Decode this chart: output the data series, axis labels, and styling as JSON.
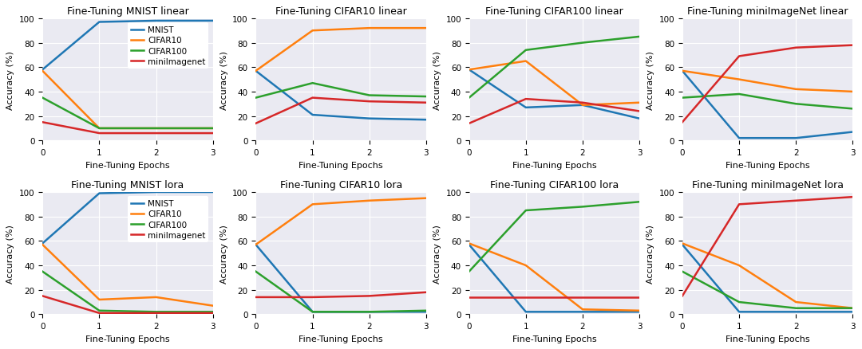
{
  "titles": [
    "Fine-Tuning MNIST linear",
    "Fine-Tuning CIFAR10 linear",
    "Fine-Tuning CIFAR100 linear",
    "Fine-Tuning miniImageNet linear",
    "Fine-Tuning MNIST lora",
    "Fine-Tuning CIFAR10 lora",
    "Fine-Tuning CIFAR100 lora",
    "Fine-Tuning miniImageNet lora"
  ],
  "xlabel": "Fine-Tuning Epochs",
  "ylabel": "Accuracy (%)",
  "legend_labels": [
    "MNIST",
    "CIFAR10",
    "CIFAR100",
    "miniImagenet"
  ],
  "colors": [
    "#1f77b4",
    "#ff7f0e",
    "#2ca02c",
    "#d62728"
  ],
  "x": [
    0,
    1,
    2,
    3
  ],
  "series": {
    "mnist_linear": {
      "MNIST": [
        58,
        97,
        98,
        98
      ],
      "CIFAR10": [
        57,
        10,
        10,
        10
      ],
      "CIFAR100": [
        35,
        10,
        10,
        10
      ],
      "miniImagenet": [
        15,
        6,
        6,
        6
      ]
    },
    "cifar10_linear": {
      "MNIST": [
        57,
        21,
        18,
        17
      ],
      "CIFAR10": [
        57,
        90,
        92,
        92
      ],
      "CIFAR100": [
        35,
        47,
        37,
        36
      ],
      "miniImagenet": [
        14,
        35,
        32,
        31
      ]
    },
    "cifar100_linear": {
      "MNIST": [
        58,
        27,
        29,
        18
      ],
      "CIFAR10": [
        58,
        65,
        29,
        31
      ],
      "CIFAR100": [
        35,
        74,
        80,
        85
      ],
      "miniImagenet": [
        14,
        34,
        31,
        24
      ]
    },
    "miniImageNet_linear": {
      "MNIST": [
        57,
        2,
        2,
        7
      ],
      "CIFAR10": [
        57,
        50,
        42,
        40
      ],
      "CIFAR100": [
        35,
        38,
        30,
        26
      ],
      "miniImagenet": [
        15,
        69,
        76,
        78
      ]
    },
    "mnist_lora": {
      "MNIST": [
        58,
        99,
        100,
        100
      ],
      "CIFAR10": [
        57,
        12,
        14,
        7
      ],
      "CIFAR100": [
        35,
        3,
        2,
        2
      ],
      "miniImagenet": [
        15,
        1,
        1,
        1
      ]
    },
    "cifar10_lora": {
      "MNIST": [
        57,
        2,
        2,
        2
      ],
      "CIFAR10": [
        57,
        90,
        93,
        95
      ],
      "CIFAR100": [
        35,
        2,
        2,
        3
      ],
      "miniImagenet": [
        14,
        14,
        15,
        18
      ]
    },
    "cifar100_lora": {
      "MNIST": [
        57,
        2,
        2,
        2
      ],
      "CIFAR10": [
        58,
        40,
        4,
        3
      ],
      "CIFAR100": [
        35,
        85,
        88,
        92
      ],
      "miniImagenet": [
        14,
        14,
        14,
        14
      ]
    },
    "miniImageNet_lora": {
      "MNIST": [
        57,
        2,
        2,
        2
      ],
      "CIFAR10": [
        58,
        40,
        10,
        5
      ],
      "CIFAR100": [
        35,
        10,
        5,
        5
      ],
      "miniImagenet": [
        15,
        90,
        93,
        96
      ]
    }
  },
  "background_color": "#eaeaf2",
  "ylim": [
    0,
    100
  ],
  "yticks": [
    0,
    20,
    40,
    60,
    80,
    100
  ],
  "legend_subplot_indices": [
    0,
    4
  ]
}
